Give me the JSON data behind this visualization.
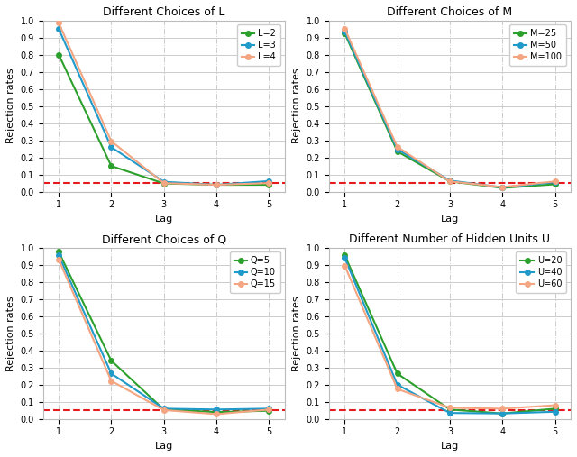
{
  "lags": [
    1,
    2,
    3,
    4,
    5
  ],
  "panel_L": {
    "title": "Different Choices of L",
    "series": [
      {
        "label": "L=2",
        "color": "#2ca02c",
        "values": [
          0.8,
          0.15,
          0.048,
          0.04,
          0.04
        ]
      },
      {
        "label": "L=3",
        "color": "#1f9ac9",
        "values": [
          0.95,
          0.26,
          0.058,
          0.04,
          0.062
        ]
      },
      {
        "label": "L=4",
        "color": "#f4a582",
        "values": [
          0.985,
          0.295,
          0.05,
          0.04,
          0.05
        ]
      }
    ]
  },
  "panel_M": {
    "title": "Different Choices of M",
    "series": [
      {
        "label": "M=25",
        "color": "#2ca02c",
        "values": [
          0.925,
          0.235,
          0.06,
          0.022,
          0.043
        ]
      },
      {
        "label": "M=50",
        "color": "#1f9ac9",
        "values": [
          0.935,
          0.248,
          0.065,
          0.025,
          0.055
        ]
      },
      {
        "label": "M=100",
        "color": "#f4a582",
        "values": [
          0.952,
          0.262,
          0.06,
          0.027,
          0.06
        ]
      }
    ]
  },
  "panel_Q": {
    "title": "Different Choices of Q",
    "series": [
      {
        "label": "Q=5",
        "color": "#2ca02c",
        "values": [
          0.975,
          0.34,
          0.055,
          0.04,
          0.048
        ]
      },
      {
        "label": "Q=10",
        "color": "#1f9ac9",
        "values": [
          0.955,
          0.265,
          0.06,
          0.055,
          0.06
        ]
      },
      {
        "label": "Q=15",
        "color": "#f4a582",
        "values": [
          0.93,
          0.222,
          0.052,
          0.028,
          0.055
        ]
      }
    ]
  },
  "panel_U": {
    "title": "Different Number of Hidden Units U",
    "series": [
      {
        "label": "U=20",
        "color": "#2ca02c",
        "values": [
          0.955,
          0.265,
          0.055,
          0.032,
          0.06
        ]
      },
      {
        "label": "U=40",
        "color": "#1f9ac9",
        "values": [
          0.94,
          0.2,
          0.035,
          0.032,
          0.042
        ]
      },
      {
        "label": "U=60",
        "color": "#f4a582",
        "values": [
          0.895,
          0.175,
          0.065,
          0.06,
          0.08
        ]
      }
    ]
  },
  "ylabel": "Rejection rates",
  "xlabel": "Lag",
  "ylim": [
    0.0,
    1.0
  ],
  "yticks": [
    0.0,
    0.1,
    0.2,
    0.3,
    0.4,
    0.5,
    0.6,
    0.7,
    0.8,
    0.9,
    1.0
  ],
  "hline_y": 0.05,
  "hline_color": "#e41a1c",
  "marker": "o",
  "markersize": 4,
  "linewidth": 1.5,
  "bg_color": "#ffffff"
}
